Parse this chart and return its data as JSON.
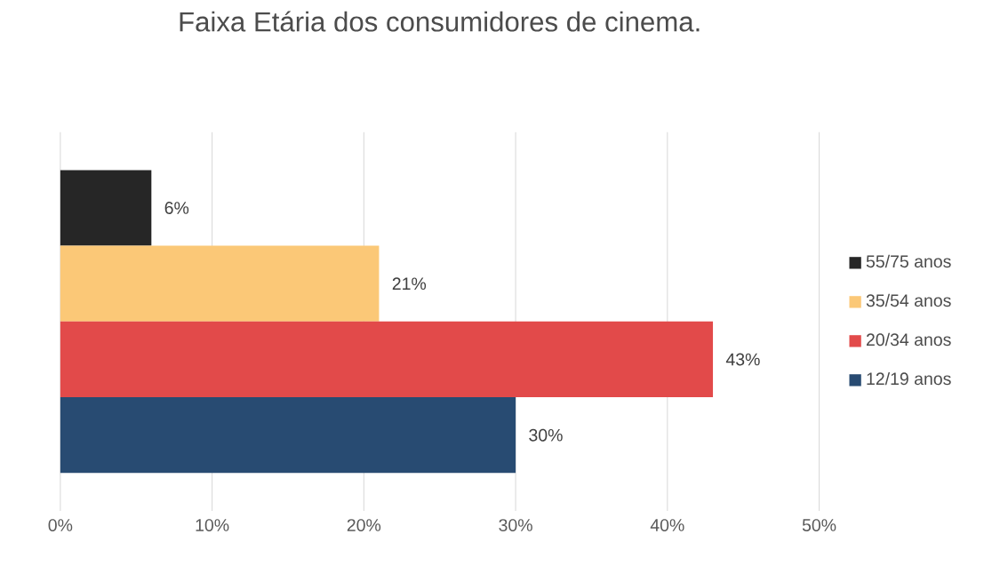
{
  "chart_data": {
    "type": "bar",
    "orientation": "horizontal",
    "title": "Faixa Etária dos consumidores de cinema.",
    "categories": [
      null
    ],
    "series": [
      {
        "name": "55/75 anos",
        "color": "#262626",
        "values": [
          6
        ],
        "value_labels": [
          "6%"
        ]
      },
      {
        "name": "35/54 anos",
        "color": "#fbc877",
        "values": [
          21
        ],
        "value_labels": [
          "21%"
        ]
      },
      {
        "name": "20/34 anos",
        "color": "#e24a4a",
        "values": [
          43
        ],
        "value_labels": [
          "43%"
        ]
      },
      {
        "name": "12/19 anos",
        "color": "#284b72",
        "values": [
          30
        ],
        "value_labels": [
          "30%"
        ]
      }
    ],
    "xlim": [
      0,
      50
    ],
    "xticks": [
      {
        "value": 0,
        "label": "0%"
      },
      {
        "value": 10,
        "label": "10%"
      },
      {
        "value": 20,
        "label": "20%"
      },
      {
        "value": 30,
        "label": "30%"
      },
      {
        "value": 40,
        "label": "40%"
      },
      {
        "value": 50,
        "label": "50%"
      }
    ],
    "grid": "x",
    "legend": "right"
  }
}
